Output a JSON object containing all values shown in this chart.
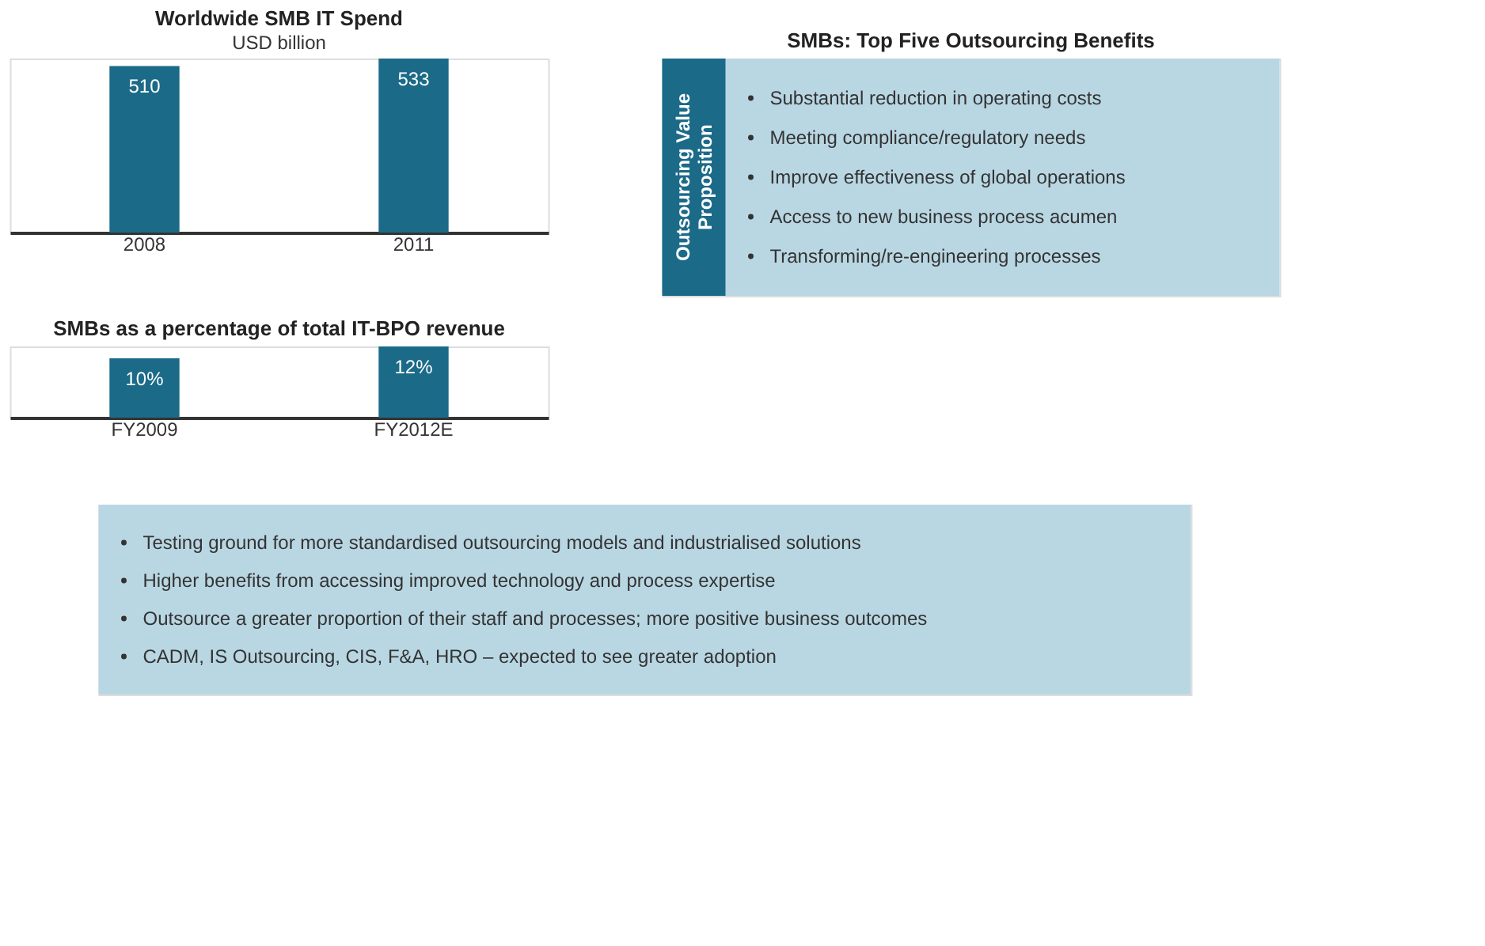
{
  "chart_data": [
    {
      "type": "bar",
      "title": "Worldwide SMB IT Spend",
      "subtitle": "USD billion",
      "categories": [
        "2008",
        "2011"
      ],
      "values": [
        510,
        533
      ],
      "color": "#1b6a88",
      "data_labels": true
    },
    {
      "type": "bar",
      "title": "SMBs as a percentage of total IT-BPO revenue",
      "categories": [
        "FY2009",
        "FY2012E"
      ],
      "values": [
        10,
        12
      ],
      "value_labels": [
        "10%",
        "12%"
      ],
      "color": "#1b6a88"
    },
    {
      "type": "other",
      "title": "SMBs: Top Five Outsourcing Benefits",
      "ylabel": "Outsourcing Value Proposition",
      "color": "#b9d7e3",
      "annotations": [
        "Substantial reduction in operating costs",
        "Meeting compliance/regulatory needs",
        "Improve effectiveness of global operations",
        "Access to new business process acumen",
        "Transforming/re-engineering processes"
      ]
    },
    {
      "type": "other",
      "color": "#b9d7e3",
      "annotations": [
        "Testing ground for more standardised outsourcing models and industrialised solutions",
        "Higher benefits from accessing improved technology and process expertise",
        "Outsource a greater proportion of their staff and processes; more positive business outcomes",
        "CADM, IS Outsourcing, CIS, F&A, HRO – expected to see greater adoption"
      ]
    }
  ]
}
